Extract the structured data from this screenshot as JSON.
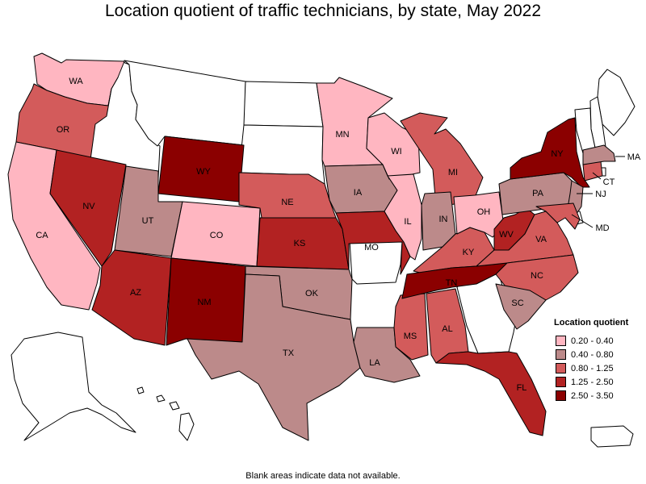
{
  "title": "Location quotient of traffic technicians, by state, May 2022",
  "footnote": "Blank areas indicate data not available.",
  "legend": {
    "title": "Location quotient",
    "items": [
      {
        "label": "0.20 - 0.40",
        "color": "#ffb6c1"
      },
      {
        "label": "0.40 - 0.80",
        "color": "#bc8a8a"
      },
      {
        "label": "0.80 - 1.25",
        "color": "#d35b5b"
      },
      {
        "label": "1.25 - 2.50",
        "color": "#b22222"
      },
      {
        "label": "2.50 - 3.50",
        "color": "#8b0000"
      }
    ]
  },
  "states": [
    {
      "abbr": "WA",
      "class": 0
    },
    {
      "abbr": "OR",
      "class": 2
    },
    {
      "abbr": "CA",
      "class": 0
    },
    {
      "abbr": "NV",
      "class": 3
    },
    {
      "abbr": "UT",
      "class": 1
    },
    {
      "abbr": "AZ",
      "class": 3
    },
    {
      "abbr": "WY",
      "class": 4
    },
    {
      "abbr": "CO",
      "class": 0
    },
    {
      "abbr": "NM",
      "class": 4
    },
    {
      "abbr": "NE",
      "class": 2
    },
    {
      "abbr": "KS",
      "class": 3
    },
    {
      "abbr": "OK",
      "class": 1
    },
    {
      "abbr": "TX",
      "class": 1
    },
    {
      "abbr": "MN",
      "class": 0
    },
    {
      "abbr": "IA",
      "class": 1
    },
    {
      "abbr": "MO",
      "class": 3
    },
    {
      "abbr": "LA",
      "class": 1
    },
    {
      "abbr": "WI",
      "class": 0
    },
    {
      "abbr": "IL",
      "class": 0
    },
    {
      "abbr": "MS",
      "class": 2
    },
    {
      "abbr": "MI",
      "class": 2
    },
    {
      "abbr": "IN",
      "class": 1
    },
    {
      "abbr": "KY",
      "class": 2
    },
    {
      "abbr": "TN",
      "class": 4
    },
    {
      "abbr": "AL",
      "class": 2
    },
    {
      "abbr": "OH",
      "class": 0
    },
    {
      "abbr": "WV",
      "class": 3
    },
    {
      "abbr": "VA",
      "class": 2
    },
    {
      "abbr": "NC",
      "class": 2
    },
    {
      "abbr": "SC",
      "class": 1
    },
    {
      "abbr": "FL",
      "class": 3
    },
    {
      "abbr": "PA",
      "class": 1
    },
    {
      "abbr": "NY",
      "class": 4
    },
    {
      "abbr": "NJ",
      "class": 1
    },
    {
      "abbr": "MD",
      "class": 2
    },
    {
      "abbr": "CT",
      "class": 2
    },
    {
      "abbr": "MA",
      "class": 1
    }
  ],
  "no_data_states": [
    "ID",
    "MT",
    "ND",
    "SD",
    "AR",
    "GA",
    "ME",
    "NH",
    "VT",
    "AK",
    "HI",
    "DE",
    "RI",
    "DC",
    "PR"
  ]
}
